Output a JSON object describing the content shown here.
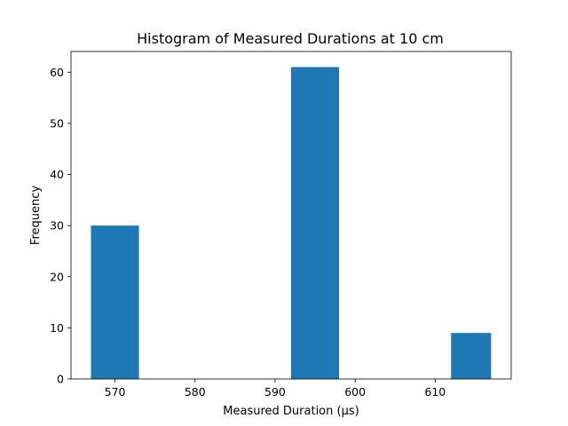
{
  "chart_data": {
    "type": "bar",
    "title": "Histogram of Measured Durations at 10 cm",
    "xlabel": "Measured Duration (µs)",
    "ylabel": "Frequency",
    "bins": [
      {
        "x0": 566.99,
        "x1": 572.99,
        "value": 30
      },
      {
        "x0": 591.99,
        "x1": 597.99,
        "value": 61
      },
      {
        "x0": 611.99,
        "x1": 616.99,
        "value": 9
      }
    ],
    "xlim": [
      564.5,
      619.5
    ],
    "ylim": [
      0,
      64.05
    ],
    "xticks": [
      570,
      580,
      590,
      600,
      610
    ],
    "yticks": [
      0,
      10,
      20,
      30,
      40,
      50,
      60
    ],
    "color": "#1f77b4",
    "grid": false,
    "legend": "none"
  }
}
